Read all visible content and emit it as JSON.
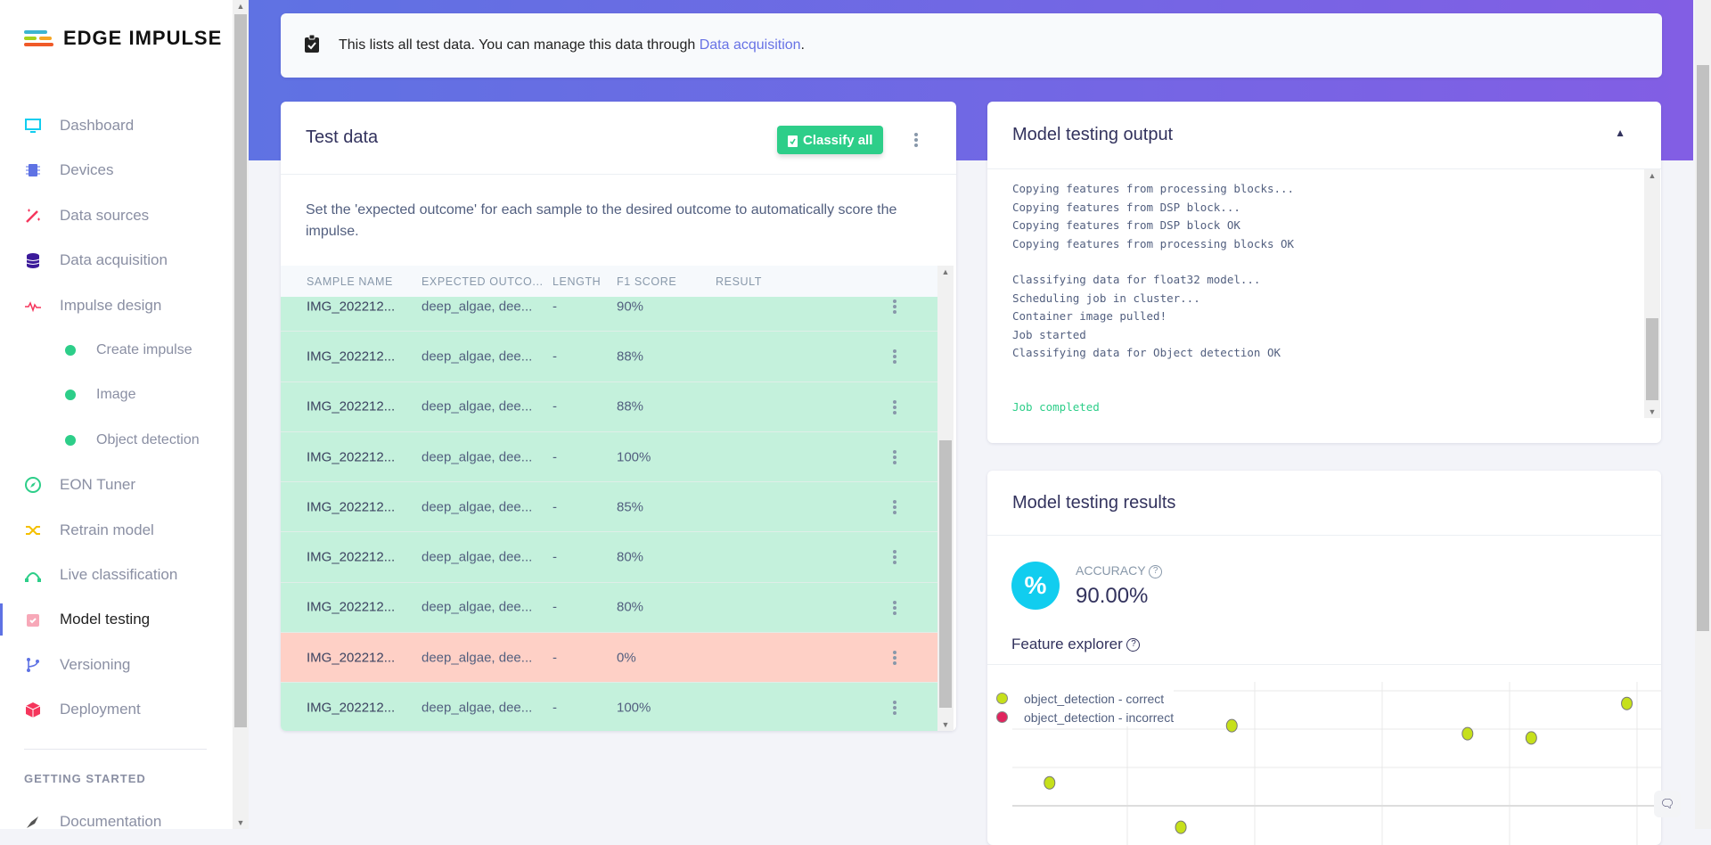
{
  "brand": {
    "name": "EDGE IMPULSE"
  },
  "sidebar": {
    "items": [
      {
        "label": "Dashboard",
        "icon": "monitor-icon"
      },
      {
        "label": "Devices",
        "icon": "chip-icon"
      },
      {
        "label": "Data sources",
        "icon": "wand-icon"
      },
      {
        "label": "Data acquisition",
        "icon": "database-icon"
      },
      {
        "label": "Impulse design",
        "icon": "pulse-icon"
      },
      {
        "label": "Create impulse",
        "icon": "dot-icon"
      },
      {
        "label": "Image",
        "icon": "dot-icon"
      },
      {
        "label": "Object detection",
        "icon": "dot-icon"
      },
      {
        "label": "EON Tuner",
        "icon": "compass-icon"
      },
      {
        "label": "Retrain model",
        "icon": "shuffle-icon"
      },
      {
        "label": "Live classification",
        "icon": "curve-icon"
      },
      {
        "label": "Model testing",
        "icon": "clipboard-check-icon",
        "active": true
      },
      {
        "label": "Versioning",
        "icon": "branch-icon"
      },
      {
        "label": "Deployment",
        "icon": "box-icon"
      }
    ],
    "section_heading": "GETTING STARTED",
    "section_items": [
      {
        "label": "Documentation",
        "icon": "rocket-icon"
      }
    ]
  },
  "info": {
    "text": "This lists all test data. You can manage this data through ",
    "link": "Data acquisition",
    "suffix": "."
  },
  "test_data": {
    "title": "Test data",
    "classify_label": "Classify all",
    "description": "Set the 'expected outcome' for each sample to the desired outcome to automatically score the impulse.",
    "columns": [
      "SAMPLE NAME",
      "EXPECTED OUTCO...",
      "LENGTH",
      "F1 SCORE",
      "RESULT"
    ],
    "rows": [
      {
        "name": "IMG_202212...",
        "expected": "deep_algae, dee...",
        "length": "-",
        "f1": "90%",
        "status": "correct"
      },
      {
        "name": "IMG_202212...",
        "expected": "deep_algae, dee...",
        "length": "-",
        "f1": "88%",
        "status": "correct"
      },
      {
        "name": "IMG_202212...",
        "expected": "deep_algae, dee...",
        "length": "-",
        "f1": "88%",
        "status": "correct"
      },
      {
        "name": "IMG_202212...",
        "expected": "deep_algae, dee...",
        "length": "-",
        "f1": "100%",
        "status": "correct"
      },
      {
        "name": "IMG_202212...",
        "expected": "deep_algae, dee...",
        "length": "-",
        "f1": "85%",
        "status": "correct"
      },
      {
        "name": "IMG_202212...",
        "expected": "deep_algae, dee...",
        "length": "-",
        "f1": "80%",
        "status": "correct"
      },
      {
        "name": "IMG_202212...",
        "expected": "deep_algae, dee...",
        "length": "-",
        "f1": "80%",
        "status": "correct"
      },
      {
        "name": "IMG_202212...",
        "expected": "deep_algae, dee...",
        "length": "-",
        "f1": "0%",
        "status": "incorrect"
      },
      {
        "name": "IMG_202212...",
        "expected": "deep_algae, dee...",
        "length": "-",
        "f1": "100%",
        "status": "correct"
      }
    ]
  },
  "output": {
    "title": "Model testing output",
    "lines": [
      "Copying features from processing blocks...",
      "Copying features from DSP block...",
      "Copying features from DSP block OK",
      "Copying features from processing blocks OK",
      "",
      "Classifying data for float32 model...",
      "Scheduling job in cluster...",
      "Container image pulled!",
      "Job started",
      "Classifying data for Object detection OK",
      "",
      ""
    ],
    "final": "Job completed"
  },
  "results": {
    "title": "Model testing results",
    "accuracy_label": "ACCURACY",
    "accuracy_value": "90.00%",
    "feature_explorer": "Feature explorer"
  },
  "colors": {
    "accent": "#5e72e4",
    "correct": "#c4f1dc",
    "incorrect": "#fed0c6",
    "button": "#2dce89",
    "accuracy": "#11cdef",
    "point_correct": "#c6e01b",
    "point_incorrect": "#e0245e"
  },
  "chart_data": {
    "type": "scatter",
    "grid": true,
    "legend": "top-left",
    "series": [
      {
        "name": "object_detection - correct",
        "color": "#c6e01b",
        "points": [
          [
            1.82,
            2.09
          ],
          [
            0.39,
            0.6
          ],
          [
            3.67,
            1.88
          ],
          [
            4.17,
            1.77
          ],
          [
            4.92,
            2.67
          ],
          [
            1.42,
            -0.56
          ]
        ]
      },
      {
        "name": "object_detection - incorrect",
        "color": "#e0245e",
        "points": []
      }
    ]
  }
}
